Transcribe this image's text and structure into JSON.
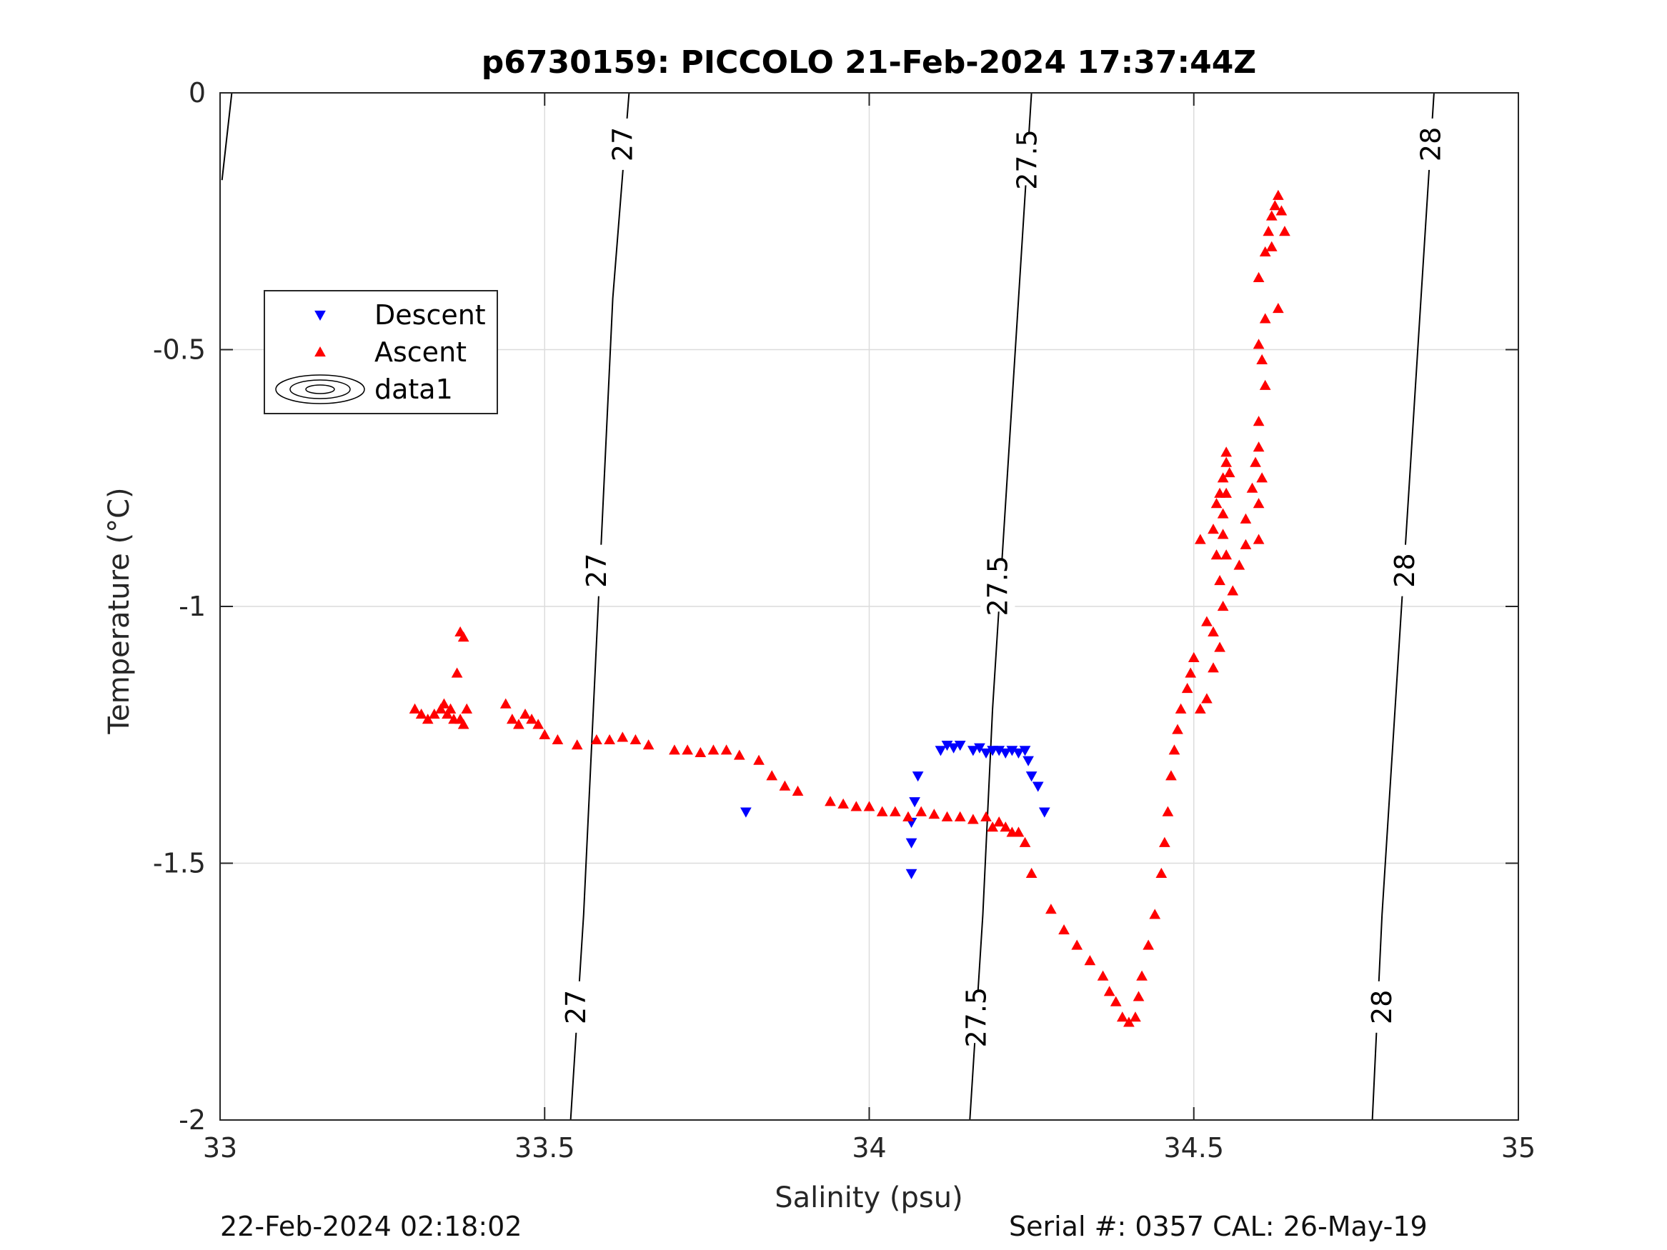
{
  "chart_data": {
    "type": "scatter",
    "title": "p6730159: PICCOLO 21-Feb-2024 17:37:44Z",
    "xlabel": "Salinity (psu)",
    "ylabel": "Temperature (°C)",
    "xlim": [
      33,
      35
    ],
    "ylim": [
      -2,
      0
    ],
    "xticks": [
      33,
      33.5,
      34,
      34.5,
      35
    ],
    "yticks": [
      0,
      -0.5,
      -1,
      -1.5,
      -2
    ],
    "xtick_labels": [
      "33",
      "33.5",
      "34",
      "34.5",
      "35"
    ],
    "ytick_labels": [
      "0",
      "-0.5",
      "-1",
      "-1.5",
      "-2"
    ],
    "grid": true,
    "legend": {
      "position": "top-left",
      "entries": [
        {
          "name": "Descent",
          "marker": "triangle-down",
          "color": "#0000ff"
        },
        {
          "name": "Ascent",
          "marker": "triangle-up",
          "color": "#ff0000"
        },
        {
          "name": "data1",
          "marker": "contour",
          "color": "#000000"
        }
      ]
    },
    "density_contours": [
      {
        "label": "27",
        "points": [
          [
            33.003,
            -0.17
          ],
          [
            33.018,
            0.0
          ]
        ],
        "show_label": false
      },
      {
        "label": "27",
        "points": [
          [
            33.54,
            -2.0
          ],
          [
            33.56,
            -1.6
          ],
          [
            33.575,
            -1.2
          ],
          [
            33.59,
            -0.8
          ],
          [
            33.605,
            -0.4
          ],
          [
            33.63,
            0.0
          ]
        ],
        "label_positions": [
          [
            33.62,
            -0.1
          ],
          [
            33.58,
            -0.93
          ],
          [
            33.548,
            -1.78
          ]
        ]
      },
      {
        "label": "27.5",
        "points": [
          [
            34.155,
            -2.0
          ],
          [
            34.175,
            -1.6
          ],
          [
            34.19,
            -1.2
          ],
          [
            34.21,
            -0.8
          ],
          [
            34.23,
            -0.4
          ],
          [
            34.25,
            0.0
          ]
        ],
        "label_positions": [
          [
            34.243,
            -0.13
          ],
          [
            34.198,
            -0.96
          ],
          [
            34.165,
            -1.8
          ]
        ]
      },
      {
        "label": "28",
        "points": [
          [
            34.775,
            -2.0
          ],
          [
            34.79,
            -1.6
          ],
          [
            34.81,
            -1.2
          ],
          [
            34.83,
            -0.8
          ],
          [
            34.85,
            -0.4
          ],
          [
            34.87,
            0.0
          ]
        ],
        "label_positions": [
          [
            34.865,
            -0.1
          ],
          [
            34.825,
            -0.93
          ],
          [
            34.79,
            -1.78
          ]
        ]
      }
    ],
    "series": [
      {
        "name": "Descent",
        "marker": "triangle-down",
        "color": "#0000ff",
        "points": [
          [
            33.81,
            -1.4
          ],
          [
            34.065,
            -1.52
          ],
          [
            34.065,
            -1.46
          ],
          [
            34.065,
            -1.42
          ],
          [
            34.07,
            -1.38
          ],
          [
            34.075,
            -1.33
          ],
          [
            34.11,
            -1.28
          ],
          [
            34.12,
            -1.27
          ],
          [
            34.13,
            -1.275
          ],
          [
            34.14,
            -1.27
          ],
          [
            34.16,
            -1.28
          ],
          [
            34.17,
            -1.275
          ],
          [
            34.18,
            -1.285
          ],
          [
            34.19,
            -1.28
          ],
          [
            34.2,
            -1.28
          ],
          [
            34.21,
            -1.285
          ],
          [
            34.22,
            -1.28
          ],
          [
            34.23,
            -1.285
          ],
          [
            34.24,
            -1.28
          ],
          [
            34.245,
            -1.3
          ],
          [
            34.25,
            -1.33
          ],
          [
            34.26,
            -1.35
          ],
          [
            34.27,
            -1.4
          ]
        ]
      },
      {
        "name": "Ascent",
        "marker": "triangle-up",
        "color": "#ff0000",
        "points": [
          [
            33.3,
            -1.2
          ],
          [
            33.31,
            -1.21
          ],
          [
            33.32,
            -1.22
          ],
          [
            33.33,
            -1.21
          ],
          [
            33.34,
            -1.2
          ],
          [
            33.345,
            -1.19
          ],
          [
            33.35,
            -1.21
          ],
          [
            33.355,
            -1.2
          ],
          [
            33.36,
            -1.22
          ],
          [
            33.365,
            -1.13
          ],
          [
            33.37,
            -1.05
          ],
          [
            33.375,
            -1.06
          ],
          [
            33.37,
            -1.22
          ],
          [
            33.375,
            -1.23
          ],
          [
            33.38,
            -1.2
          ],
          [
            33.44,
            -1.19
          ],
          [
            33.45,
            -1.22
          ],
          [
            33.46,
            -1.23
          ],
          [
            33.47,
            -1.21
          ],
          [
            33.48,
            -1.22
          ],
          [
            33.49,
            -1.23
          ],
          [
            33.5,
            -1.25
          ],
          [
            33.52,
            -1.26
          ],
          [
            33.55,
            -1.27
          ],
          [
            33.58,
            -1.26
          ],
          [
            33.6,
            -1.26
          ],
          [
            33.62,
            -1.255
          ],
          [
            33.64,
            -1.26
          ],
          [
            33.66,
            -1.27
          ],
          [
            33.7,
            -1.28
          ],
          [
            33.72,
            -1.28
          ],
          [
            33.74,
            -1.285
          ],
          [
            33.76,
            -1.28
          ],
          [
            33.78,
            -1.28
          ],
          [
            33.8,
            -1.29
          ],
          [
            33.83,
            -1.3
          ],
          [
            33.85,
            -1.33
          ],
          [
            33.87,
            -1.35
          ],
          [
            33.89,
            -1.36
          ],
          [
            33.94,
            -1.38
          ],
          [
            33.96,
            -1.385
          ],
          [
            33.98,
            -1.39
          ],
          [
            34.0,
            -1.39
          ],
          [
            34.02,
            -1.4
          ],
          [
            34.04,
            -1.4
          ],
          [
            34.06,
            -1.41
          ],
          [
            34.08,
            -1.4
          ],
          [
            34.1,
            -1.405
          ],
          [
            34.12,
            -1.41
          ],
          [
            34.14,
            -1.41
          ],
          [
            34.16,
            -1.415
          ],
          [
            34.18,
            -1.41
          ],
          [
            34.19,
            -1.43
          ],
          [
            34.2,
            -1.42
          ],
          [
            34.21,
            -1.43
          ],
          [
            34.22,
            -1.44
          ],
          [
            34.23,
            -1.44
          ],
          [
            34.24,
            -1.46
          ],
          [
            34.25,
            -1.52
          ],
          [
            34.28,
            -1.59
          ],
          [
            34.3,
            -1.63
          ],
          [
            34.32,
            -1.66
          ],
          [
            34.34,
            -1.69
          ],
          [
            34.36,
            -1.72
          ],
          [
            34.37,
            -1.75
          ],
          [
            34.38,
            -1.77
          ],
          [
            34.39,
            -1.8
          ],
          [
            34.4,
            -1.81
          ],
          [
            34.41,
            -1.8
          ],
          [
            34.415,
            -1.76
          ],
          [
            34.42,
            -1.72
          ],
          [
            34.43,
            -1.66
          ],
          [
            34.44,
            -1.6
          ],
          [
            34.45,
            -1.52
          ],
          [
            34.455,
            -1.46
          ],
          [
            34.46,
            -1.4
          ],
          [
            34.465,
            -1.33
          ],
          [
            34.47,
            -1.28
          ],
          [
            34.475,
            -1.24
          ],
          [
            34.48,
            -1.2
          ],
          [
            34.49,
            -1.16
          ],
          [
            34.495,
            -1.13
          ],
          [
            34.5,
            -1.1
          ],
          [
            34.51,
            -1.2
          ],
          [
            34.52,
            -1.18
          ],
          [
            34.53,
            -1.12
          ],
          [
            34.54,
            -1.08
          ],
          [
            34.545,
            -1.0
          ],
          [
            34.54,
            -0.95
          ],
          [
            34.535,
            -0.9
          ],
          [
            34.53,
            -0.85
          ],
          [
            34.535,
            -0.8
          ],
          [
            34.54,
            -0.78
          ],
          [
            34.545,
            -0.75
          ],
          [
            34.55,
            -0.72
          ],
          [
            34.55,
            -0.7
          ],
          [
            34.555,
            -0.74
          ],
          [
            34.55,
            -0.78
          ],
          [
            34.545,
            -0.82
          ],
          [
            34.545,
            -0.86
          ],
          [
            34.55,
            -0.9
          ],
          [
            34.51,
            -0.87
          ],
          [
            34.52,
            -1.03
          ],
          [
            34.53,
            -1.05
          ],
          [
            34.56,
            -0.97
          ],
          [
            34.57,
            -0.92
          ],
          [
            34.58,
            -0.88
          ],
          [
            34.58,
            -0.83
          ],
          [
            34.59,
            -0.77
          ],
          [
            34.595,
            -0.72
          ],
          [
            34.6,
            -0.69
          ],
          [
            34.605,
            -0.75
          ],
          [
            34.6,
            -0.8
          ],
          [
            34.6,
            -0.87
          ],
          [
            34.6,
            -0.64
          ],
          [
            34.61,
            -0.57
          ],
          [
            34.605,
            -0.52
          ],
          [
            34.6,
            -0.49
          ],
          [
            34.61,
            -0.44
          ],
          [
            34.6,
            -0.36
          ],
          [
            34.61,
            -0.31
          ],
          [
            34.615,
            -0.27
          ],
          [
            34.62,
            -0.24
          ],
          [
            34.625,
            -0.22
          ],
          [
            34.63,
            -0.2
          ],
          [
            34.635,
            -0.23
          ],
          [
            34.64,
            -0.27
          ],
          [
            34.62,
            -0.3
          ],
          [
            34.63,
            -0.42
          ]
        ]
      }
    ]
  },
  "footer": {
    "date": "22-Feb-2024 02:18:02",
    "serial": "Serial #: 0357  CAL: 26-May-19"
  }
}
